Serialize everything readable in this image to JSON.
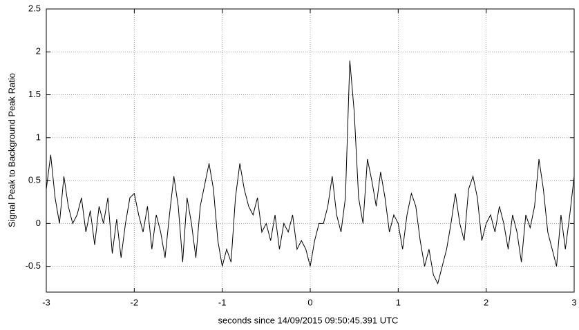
{
  "chart_data": {
    "type": "line",
    "xlabel": "seconds since 14/09/2015 09:50:45.391 UTC",
    "ylabel": "Signal Peak to Background Peak Ratio",
    "x": [
      -3.0,
      -2.95,
      -2.9,
      -2.85,
      -2.8,
      -2.75,
      -2.7,
      -2.65,
      -2.6,
      -2.55,
      -2.5,
      -2.45,
      -2.4,
      -2.35,
      -2.3,
      -2.25,
      -2.2,
      -2.15,
      -2.1,
      -2.05,
      -2.0,
      -1.95,
      -1.9,
      -1.85,
      -1.8,
      -1.75,
      -1.7,
      -1.65,
      -1.6,
      -1.55,
      -1.5,
      -1.45,
      -1.4,
      -1.35,
      -1.3,
      -1.25,
      -1.2,
      -1.15,
      -1.1,
      -1.05,
      -1.0,
      -0.95,
      -0.9,
      -0.85,
      -0.8,
      -0.75,
      -0.7,
      -0.65,
      -0.6,
      -0.55,
      -0.5,
      -0.45,
      -0.4,
      -0.35,
      -0.3,
      -0.25,
      -0.2,
      -0.15,
      -0.1,
      -0.05,
      0.0,
      0.05,
      0.1,
      0.15,
      0.2,
      0.25,
      0.3,
      0.35,
      0.4,
      0.45,
      0.5,
      0.55,
      0.6,
      0.65,
      0.7,
      0.75,
      0.8,
      0.85,
      0.9,
      0.95,
      1.0,
      1.05,
      1.1,
      1.15,
      1.2,
      1.25,
      1.3,
      1.35,
      1.4,
      1.45,
      1.5,
      1.55,
      1.6,
      1.65,
      1.7,
      1.75,
      1.8,
      1.85,
      1.9,
      1.95,
      2.0,
      2.05,
      2.1,
      2.15,
      2.2,
      2.25,
      2.3,
      2.35,
      2.4,
      2.45,
      2.5,
      2.55,
      2.6,
      2.65,
      2.7,
      2.75,
      2.8,
      2.85,
      2.9,
      2.95,
      3.0
    ],
    "series": [
      {
        "color": "#000000",
        "values": [
          0.4,
          0.8,
          0.3,
          0.0,
          0.55,
          0.2,
          0.0,
          0.1,
          0.3,
          -0.1,
          0.15,
          -0.25,
          0.2,
          0.0,
          0.3,
          -0.35,
          0.05,
          -0.4,
          0.0,
          0.3,
          0.35,
          0.1,
          -0.1,
          0.2,
          -0.3,
          0.1,
          -0.1,
          -0.4,
          0.1,
          0.55,
          0.2,
          -0.45,
          0.3,
          0.0,
          -0.4,
          0.2,
          0.45,
          0.7,
          0.4,
          -0.2,
          -0.5,
          -0.3,
          -0.45,
          0.3,
          0.7,
          0.4,
          0.2,
          0.1,
          0.3,
          -0.1,
          0.0,
          -0.2,
          0.1,
          -0.3,
          0.0,
          -0.1,
          0.1,
          -0.3,
          -0.2,
          -0.3,
          -0.5,
          -0.2,
          0.0,
          0.0,
          0.2,
          0.55,
          0.1,
          -0.1,
          0.3,
          1.9,
          1.3,
          0.3,
          0.0,
          0.75,
          0.5,
          0.2,
          0.6,
          0.3,
          -0.1,
          0.1,
          0.0,
          -0.3,
          0.1,
          0.35,
          0.2,
          -0.2,
          -0.5,
          -0.3,
          -0.6,
          -0.7,
          -0.5,
          -0.3,
          0.0,
          0.35,
          0.0,
          -0.2,
          0.4,
          0.55,
          0.3,
          -0.2,
          0.0,
          0.1,
          -0.1,
          0.2,
          0.0,
          -0.3,
          0.1,
          -0.1,
          -0.45,
          0.1,
          -0.05,
          0.2,
          0.75,
          0.4,
          -0.1,
          -0.3,
          -0.5,
          0.1,
          -0.3,
          0.1,
          0.55
        ]
      }
    ],
    "xlim": [
      -3,
      3
    ],
    "xticks": [
      -3,
      -2,
      -1,
      0,
      1,
      2,
      3
    ],
    "ylim": [
      -0.8,
      2.5
    ],
    "yticks": [
      -0.5,
      0,
      0.5,
      1,
      1.5,
      2,
      2.5
    ],
    "grid": true
  }
}
